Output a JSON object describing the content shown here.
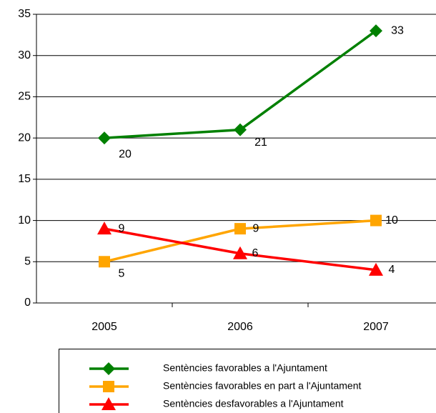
{
  "chart_data": {
    "type": "line",
    "categories": [
      "2005",
      "2006",
      "2007"
    ],
    "series": [
      {
        "name": "Sentències favorables a l'Ajuntament",
        "color": "#008000",
        "marker": "diamond",
        "values": [
          20,
          21,
          33
        ]
      },
      {
        "name": "Sentències favorables en part a l'Ajuntament",
        "color": "#ffa500",
        "marker": "square",
        "values": [
          5,
          9,
          10
        ]
      },
      {
        "name": "Sentències desfavorables a l'Ajuntament",
        "color": "#ff0000",
        "marker": "triangle",
        "values": [
          9,
          6,
          4
        ]
      }
    ],
    "ylim": [
      0,
      35
    ],
    "yticks": [
      0,
      5,
      10,
      15,
      20,
      25,
      30,
      35
    ],
    "grid": true,
    "legend": "bottom"
  }
}
